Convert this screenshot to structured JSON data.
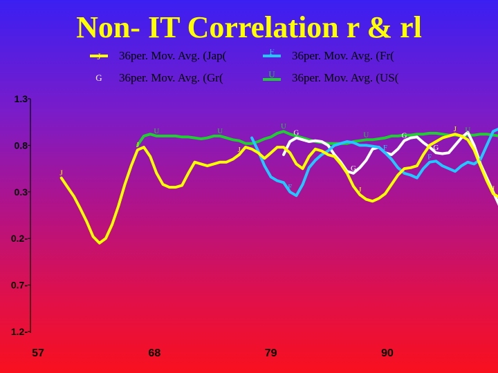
{
  "title": "Non- IT Correlation r & rl",
  "legend": [
    {
      "label": "36per. Mov. Avg. (Jap(",
      "color": "#ffff00",
      "marker": "J"
    },
    {
      "label": "36per. Mov. Avg. (Fr(",
      "color": "#22c8ff",
      "marker": "F"
    },
    {
      "label": "36per. Mov. Avg. (Gr(",
      "color": "#ffffff",
      "marker": "G"
    },
    {
      "label": "36per. Mov. Avg. (US(",
      "color": "#22cc33",
      "marker": "U"
    }
  ],
  "chart_data": {
    "type": "line",
    "title": "Non- IT Correlation r & rl",
    "y_ticks": [
      "1.3",
      "0.8",
      "0.3",
      "0.2-",
      "0.7-",
      "1.2-"
    ],
    "x_ticks": [
      "57",
      "68",
      "79",
      "90"
    ],
    "xlim": [
      57,
      101
    ],
    "ylim": [
      -1.2,
      1.3
    ],
    "legend_position": "top",
    "grid": false,
    "series": [
      {
        "name": "36per. Mov. Avg. (Jap(",
        "color": "#ffff00",
        "marker": "J",
        "x": [
          59.2,
          59.8,
          60.4,
          61.0,
          61.6,
          62.2,
          62.8,
          63.4,
          64.0,
          64.6,
          65.2,
          65.8,
          66.4,
          67.0,
          67.6,
          68.2,
          68.8,
          69.4,
          70.0,
          70.6,
          71.2,
          71.8,
          72.4,
          73.0,
          73.6,
          74.2,
          74.8,
          75.4,
          76.0,
          76.6,
          77.2,
          77.8,
          78.4,
          79.0,
          79.6,
          80.2,
          80.8,
          81.4,
          82.0,
          82.6,
          83.2,
          83.8,
          84.4,
          85.0,
          85.6,
          86.2,
          86.8,
          87.4,
          88.0,
          88.6,
          89.2,
          89.8,
          90.4,
          91.0,
          91.6,
          92.2,
          92.8,
          93.4,
          94.0,
          94.6,
          95.2,
          95.8,
          96.4,
          97.0,
          97.6,
          98.2,
          98.8,
          99.4,
          100.0,
          100.6
        ],
        "y": [
          0.45,
          0.35,
          0.25,
          0.12,
          -0.02,
          -0.18,
          -0.25,
          -0.2,
          -0.05,
          0.15,
          0.38,
          0.58,
          0.75,
          0.78,
          0.68,
          0.5,
          0.38,
          0.35,
          0.35,
          0.37,
          0.5,
          0.62,
          0.6,
          0.58,
          0.6,
          0.62,
          0.62,
          0.65,
          0.7,
          0.78,
          0.76,
          0.72,
          0.66,
          0.72,
          0.78,
          0.78,
          0.72,
          0.6,
          0.55,
          0.68,
          0.76,
          0.74,
          0.7,
          0.68,
          0.6,
          0.5,
          0.36,
          0.27,
          0.22,
          0.2,
          0.23,
          0.28,
          0.38,
          0.48,
          0.55,
          0.56,
          0.58,
          0.7,
          0.8,
          0.84,
          0.88,
          0.9,
          0.92,
          0.9,
          0.86,
          0.75,
          0.58,
          0.42,
          0.28,
          0.24
        ]
      },
      {
        "name": "36per. Mov. Avg. (Fr(",
        "color": "#22c8ff",
        "marker": "F",
        "x": [
          77.2,
          77.8,
          78.4,
          79.0,
          79.6,
          80.2,
          80.8,
          81.4,
          82.0,
          82.6,
          83.2,
          83.8,
          84.4,
          85.0,
          85.6,
          86.2,
          86.8,
          87.4,
          88.0,
          88.6,
          89.2,
          89.8,
          90.4,
          91.0,
          91.6,
          92.2,
          92.8,
          93.4,
          94.0,
          94.6,
          95.2,
          95.8,
          96.4,
          97.0,
          97.6,
          98.2,
          98.8,
          99.4,
          100.0,
          100.6
        ],
        "y": [
          0.88,
          0.74,
          0.58,
          0.46,
          0.42,
          0.4,
          0.3,
          0.26,
          0.38,
          0.56,
          0.64,
          0.7,
          0.74,
          0.8,
          0.82,
          0.84,
          0.83,
          0.8,
          0.8,
          0.79,
          0.78,
          0.72,
          0.65,
          0.56,
          0.5,
          0.48,
          0.45,
          0.55,
          0.62,
          0.63,
          0.58,
          0.55,
          0.52,
          0.58,
          0.62,
          0.6,
          0.65,
          0.8,
          0.95,
          0.98
        ]
      },
      {
        "name": "36per. Mov. Avg. (Gr(",
        "color": "#ffffff",
        "marker": "G",
        "x": [
          80.2,
          80.8,
          81.4,
          82.0,
          82.6,
          83.2,
          83.8,
          84.4,
          85.0,
          85.6,
          86.2,
          86.8,
          87.4,
          88.0,
          88.6,
          89.2,
          89.8,
          90.4,
          91.0,
          91.6,
          92.2,
          92.8,
          93.4,
          94.0,
          94.6,
          95.2,
          95.8,
          96.4,
          97.0,
          97.6,
          98.2,
          98.8,
          99.4,
          100.0,
          100.6
        ],
        "y": [
          0.7,
          0.84,
          0.88,
          0.86,
          0.84,
          0.85,
          0.84,
          0.8,
          0.7,
          0.62,
          0.52,
          0.5,
          0.56,
          0.64,
          0.76,
          0.78,
          0.72,
          0.7,
          0.76,
          0.85,
          0.88,
          0.89,
          0.83,
          0.78,
          0.72,
          0.71,
          0.72,
          0.8,
          0.88,
          0.94,
          0.8,
          0.6,
          0.45,
          0.3,
          0.15
        ]
      },
      {
        "name": "36per. Mov. Avg. (US(",
        "color": "#22cc33",
        "marker": "U",
        "x": [
          66.4,
          67.0,
          67.6,
          68.2,
          68.8,
          69.4,
          70.0,
          70.6,
          71.2,
          71.8,
          72.4,
          73.0,
          73.6,
          74.2,
          74.8,
          75.4,
          76.0,
          76.6,
          77.2,
          77.8,
          78.4,
          79.0,
          79.6,
          80.2,
          80.8,
          81.4,
          82.0,
          82.6,
          83.2,
          83.8,
          84.4,
          85.0,
          85.6,
          86.2,
          86.8,
          87.4,
          88.0,
          88.6,
          89.2,
          89.8,
          90.4,
          91.0,
          91.6,
          92.2,
          92.8,
          93.4,
          94.0,
          94.6,
          95.2,
          95.8,
          96.4,
          97.0,
          97.6,
          98.2,
          98.8,
          99.4,
          100.0,
          100.6
        ],
        "y": [
          0.8,
          0.9,
          0.92,
          0.9,
          0.9,
          0.9,
          0.9,
          0.89,
          0.89,
          0.88,
          0.87,
          0.88,
          0.9,
          0.9,
          0.88,
          0.86,
          0.85,
          0.82,
          0.82,
          0.84,
          0.87,
          0.89,
          0.93,
          0.95,
          0.92,
          0.9,
          0.88,
          0.86,
          0.84,
          0.83,
          0.82,
          0.82,
          0.82,
          0.82,
          0.84,
          0.85,
          0.86,
          0.86,
          0.87,
          0.88,
          0.9,
          0.9,
          0.91,
          0.91,
          0.92,
          0.92,
          0.93,
          0.93,
          0.92,
          0.91,
          0.91,
          0.9,
          0.91,
          0.91,
          0.92,
          0.92,
          0.91,
          0.9
        ]
      }
    ],
    "point_markers": [
      {
        "series": 0,
        "x": 59.2,
        "y": 0.45,
        "text": "J"
      },
      {
        "series": 0,
        "x": 66.4,
        "y": 0.75,
        "text": "J"
      },
      {
        "series": 0,
        "x": 76.0,
        "y": 0.7,
        "text": "J"
      },
      {
        "series": 0,
        "x": 87.4,
        "y": 0.27,
        "text": "J"
      },
      {
        "series": 0,
        "x": 96.4,
        "y": 0.92,
        "text": "J"
      },
      {
        "series": 0,
        "x": 100.0,
        "y": 0.28,
        "text": "J"
      },
      {
        "series": 1,
        "x": 80.8,
        "y": 0.3,
        "text": "F"
      },
      {
        "series": 1,
        "x": 89.8,
        "y": 0.72,
        "text": "F"
      },
      {
        "series": 1,
        "x": 94.0,
        "y": 0.62,
        "text": "F"
      },
      {
        "series": 2,
        "x": 81.4,
        "y": 0.88,
        "text": "G"
      },
      {
        "series": 2,
        "x": 86.8,
        "y": 0.5,
        "text": "G"
      },
      {
        "series": 2,
        "x": 91.6,
        "y": 0.85,
        "text": "G"
      },
      {
        "series": 2,
        "x": 94.6,
        "y": 0.72,
        "text": "G"
      },
      {
        "series": 3,
        "x": 68.2,
        "y": 0.9,
        "text": "U"
      },
      {
        "series": 3,
        "x": 74.2,
        "y": 0.9,
        "text": "U"
      },
      {
        "series": 3,
        "x": 80.2,
        "y": 0.95,
        "text": "U"
      },
      {
        "series": 3,
        "x": 88.0,
        "y": 0.86,
        "text": "U"
      },
      {
        "series": 3,
        "x": 97.6,
        "y": 0.91,
        "text": "U"
      }
    ]
  }
}
